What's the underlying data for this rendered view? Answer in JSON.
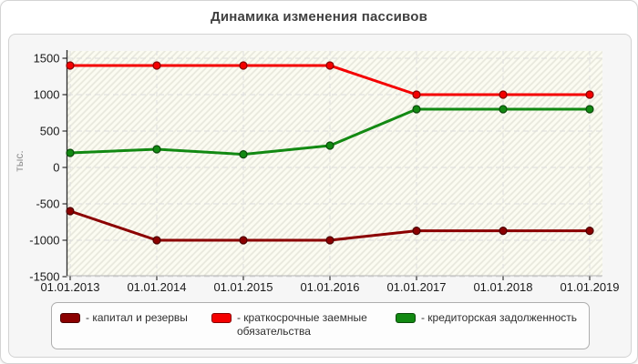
{
  "title": "Динамика изменения пассивов",
  "chart_data": {
    "type": "line",
    "title": "Динамика изменения пассивов",
    "ylabel": "тыс.",
    "xlabel": "",
    "ylim": [
      -1500,
      1500
    ],
    "yticks": [
      1500,
      1000,
      500,
      0,
      -500,
      -1000,
      -1500
    ],
    "grid": true,
    "legend_position": "bottom",
    "plot_background": "#fcfcf2",
    "categories": [
      "01.01.2013",
      "01.01.2014",
      "01.01.2015",
      "01.01.2016",
      "01.01.2017",
      "01.01.2018",
      "01.01.2019"
    ],
    "series": [
      {
        "name": "капитал и резервы",
        "color": "#8b0000",
        "values": [
          -600,
          -1000,
          -1000,
          -1000,
          -870,
          -870,
          -870
        ]
      },
      {
        "name": "краткосрочные заемные обязательства",
        "color": "#f40000",
        "values": [
          1400,
          1400,
          1400,
          1400,
          1000,
          1000,
          1000
        ]
      },
      {
        "name": "кредиторская задолженность",
        "color": "#128912",
        "values": [
          200,
          250,
          180,
          300,
          800,
          800,
          800
        ]
      }
    ]
  },
  "legend": {
    "items": [
      {
        "label": "- капитал и резервы",
        "color": "#8b0000"
      },
      {
        "label": "- краткосрочные заемные обязательства",
        "color": "#f40000"
      },
      {
        "label": "- кредиторская задолженность",
        "color": "#128912"
      }
    ]
  }
}
